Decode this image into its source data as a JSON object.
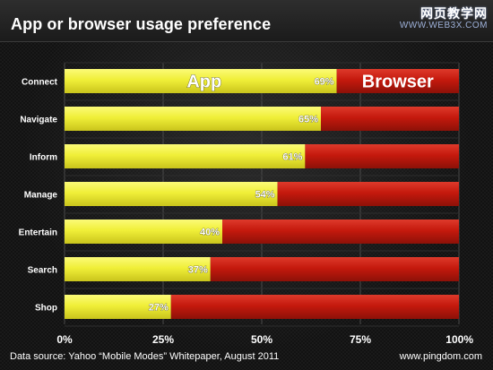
{
  "watermark": {
    "line1": "网页教学网",
    "line2": "WWW.WEB3X.COM"
  },
  "footer": {
    "source": "Data source: Yahoo “Mobile Modes” Whitepaper, August 2011",
    "site": "www.pingdom.com"
  },
  "chart_data": {
    "type": "bar",
    "orientation": "horizontal",
    "stacked": true,
    "title": "App or browser usage preference",
    "categories": [
      "Connect",
      "Navigate",
      "Inform",
      "Manage",
      "Entertain",
      "Search",
      "Shop"
    ],
    "series": [
      {
        "name": "App",
        "values": [
          69,
          65,
          61,
          54,
          40,
          37,
          27
        ],
        "color": "#f0ef38"
      },
      {
        "name": "Browser",
        "values": [
          31,
          35,
          39,
          46,
          60,
          63,
          73
        ],
        "color": "#c5190d"
      }
    ],
    "data_labels": [
      "69%",
      "65%",
      "61%",
      "54%",
      "40%",
      "37%",
      "27%"
    ],
    "xlim": [
      0,
      100
    ],
    "x_ticks": [
      0,
      25,
      50,
      75,
      100
    ],
    "x_tick_labels": [
      "0%",
      "25%",
      "50%",
      "75%",
      "100%"
    ],
    "legend_placement": "inside first bar",
    "grid": true
  }
}
